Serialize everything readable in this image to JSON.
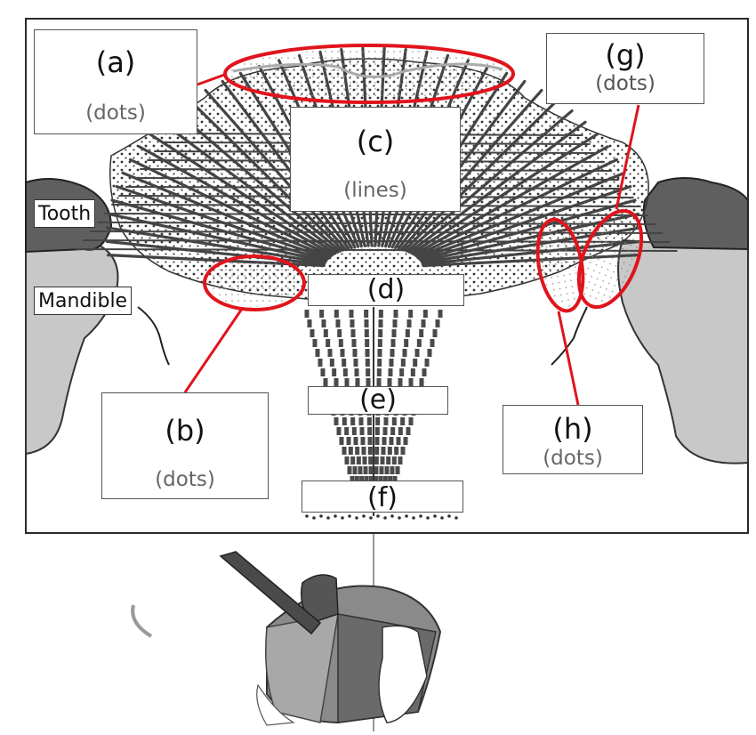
{
  "labels": {
    "a": {
      "letter": "(a)",
      "pattern": "(dots)"
    },
    "b": {
      "letter": "(b)",
      "pattern": "(dots)"
    },
    "c": {
      "letter": "(c)",
      "pattern": "(lines)"
    },
    "d": {
      "letter": "(d)"
    },
    "e": {
      "letter": "(e)"
    },
    "f": {
      "letter": "(f)"
    },
    "g": {
      "letter": "(g)",
      "pattern": "(dots)"
    },
    "h": {
      "letter": "(h)",
      "pattern": "(dots)"
    }
  },
  "structures": {
    "tooth": "Tooth",
    "mandible": "Mandible"
  },
  "colors": {
    "highlight": "#e0141c",
    "fiber": "#4a4a4a",
    "tooth": "#5f5f5f",
    "mandible": "#c8c8c8"
  }
}
